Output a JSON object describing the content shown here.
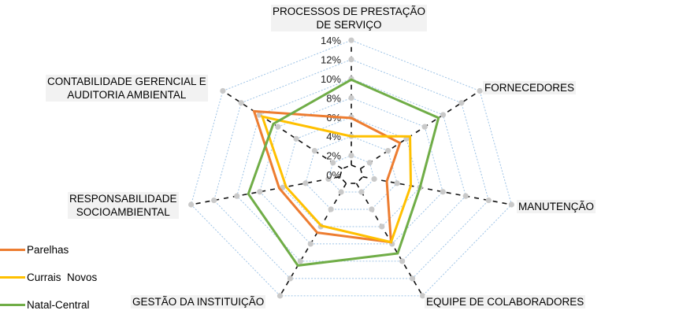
{
  "chart_data": {
    "type": "radar",
    "title": "",
    "axes": [
      "PROCESSOS DE PRESTAÇÃO DE SERVIÇO",
      "FORNECEDORES",
      "MANUTENÇÃO",
      "EQUIPE DE COLABORADORES",
      "GESTÃO DA INSTITUIÇÃO",
      "RESPONSABILIDADE SOCIOAMBIENTAL",
      "CONTABILIDADE GERENCIAL E AUDITORIA AMBIENTAL"
    ],
    "radial_ticks": [
      "0%",
      "2%",
      "4%",
      "6%",
      "8%",
      "10%",
      "12%",
      "14%"
    ],
    "rlim": [
      0,
      14
    ],
    "grid": true,
    "legend_position": "bottom-left",
    "series": [
      {
        "name": "Parelhas",
        "color": "#ed7d31",
        "values": [
          5.9,
          5.3,
          3.1,
          7.8,
          6.7,
          6.3,
          10.6
        ]
      },
      {
        "name": "Currais  Novos",
        "color": "#ffc000",
        "values": [
          4.0,
          6.4,
          5.2,
          7.8,
          5.9,
          5.7,
          9.7
        ]
      },
      {
        "name": "Natal-Central",
        "color": "#70ad47",
        "values": [
          9.9,
          9.5,
          6.0,
          9.1,
          10.5,
          9.0,
          8.5
        ]
      }
    ]
  },
  "labels": {
    "axis0_line1": "PROCESSOS DE PRESTAÇÃO",
    "axis0_line2": "DE SERVIÇO",
    "axis1": "FORNECEDORES",
    "axis2": "MANUTENÇÃO",
    "axis3": "EQUIPE DE COLABORADORES",
    "axis4": "GESTÃO DA INSTITUIÇÃO",
    "axis5_line1": "RESPONSABILIDADE",
    "axis5_line2": "SOCIOAMBIENTAL",
    "axis6_line1": "CONTABILIDADE GERENCIAL E",
    "axis6_line2": "AUDITORIA AMBIENTAL"
  },
  "legend": [
    {
      "label": "Parelhas",
      "color": "#ed7d31"
    },
    {
      "label": "Currais  Novos",
      "color": "#ffc000"
    },
    {
      "label": "Natal-Central",
      "color": "#70ad47"
    }
  ]
}
